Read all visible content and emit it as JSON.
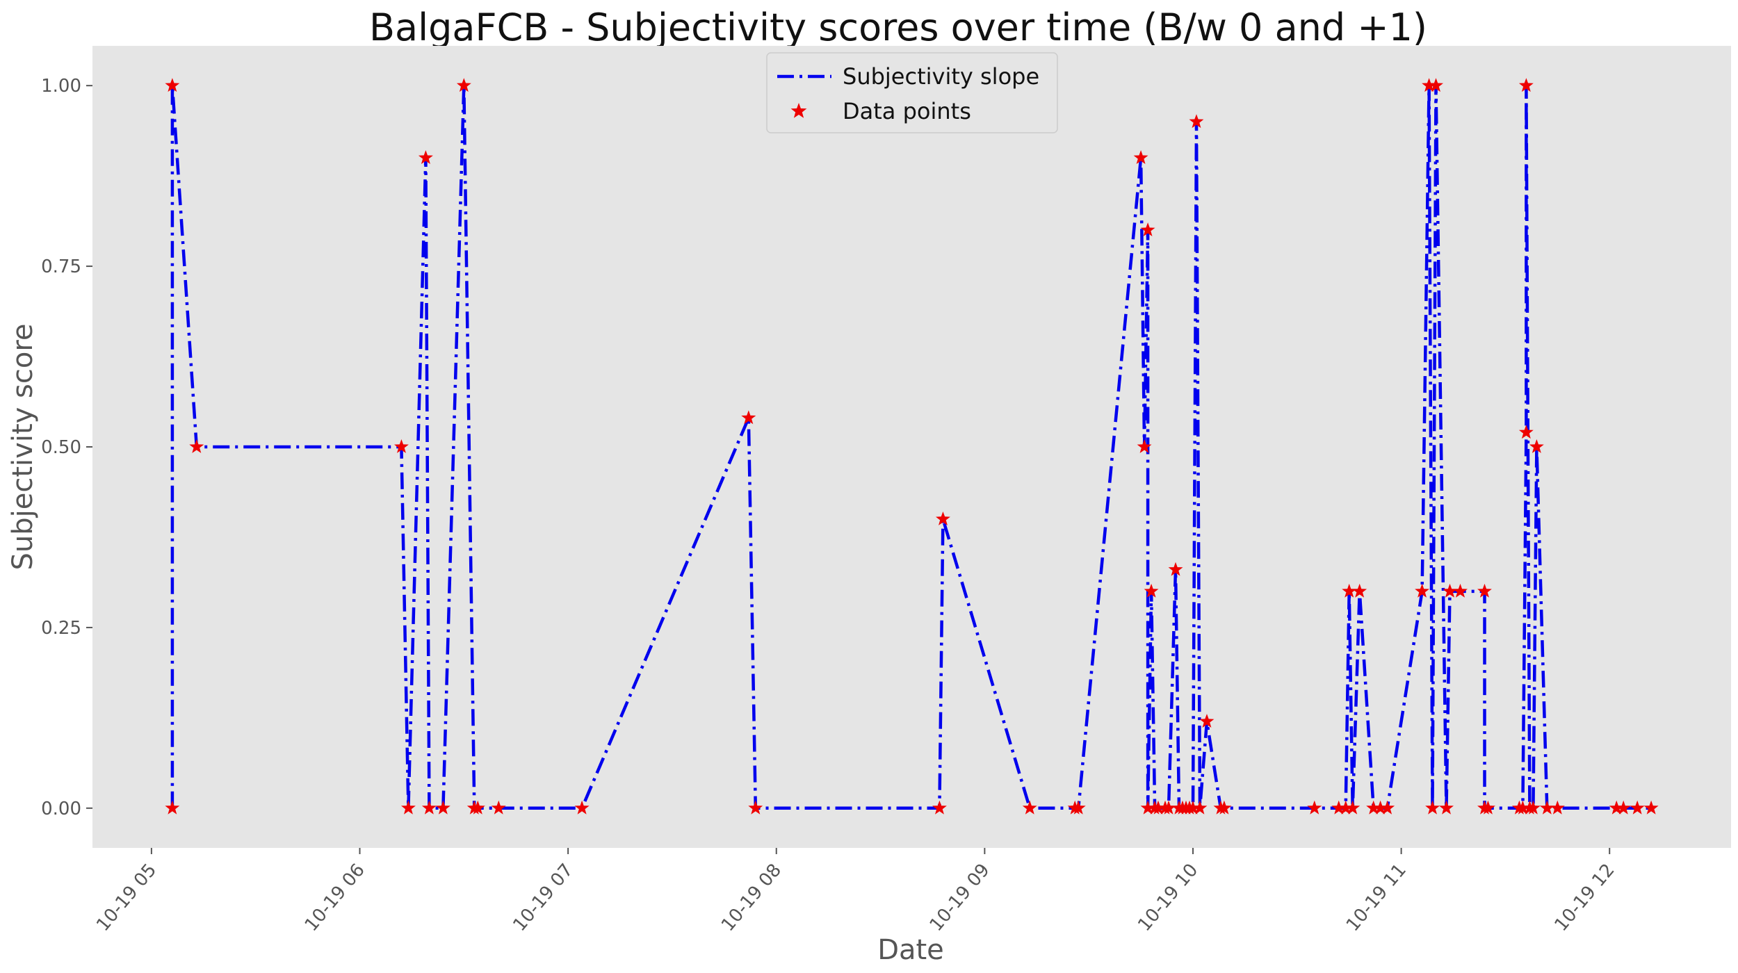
{
  "chart_data": {
    "type": "line",
    "title": "BalgaFCB - Subjectivity scores over time (B/w 0 and +1)",
    "xlabel": "Date",
    "ylabel": "Subjectivity score",
    "ylim": [
      -0.055,
      1.055
    ],
    "xlim": [
      "10-19 04:43",
      "10-19 12:35"
    ],
    "yticks": [
      0.0,
      0.25,
      0.5,
      0.75,
      1.0
    ],
    "ytick_labels": [
      "0.00",
      "0.25",
      "0.50",
      "0.75",
      "1.00"
    ],
    "xticks": [
      "10-19 05:00",
      "10-19 06:00",
      "10-19 07:00",
      "10-19 08:00",
      "10-19 09:00",
      "10-19 10:00",
      "10-19 11:00",
      "10-19 12:00"
    ],
    "xtick_labels": [
      "10-19 05",
      "10-19 06",
      "10-19 07",
      "10-19 08",
      "10-19 09",
      "10-19 10",
      "10-19 11",
      "10-19 12"
    ],
    "grid": false,
    "legend": "upper-center",
    "colors": {
      "line": "#0000ee",
      "points": "#ee0000",
      "plot_bg": "#e5e5e5"
    },
    "series": [
      {
        "name": "Subjectivity slope",
        "style": "dashdot-line"
      },
      {
        "name": "Data points",
        "style": "star-markers"
      }
    ],
    "points": [
      [
        "10-19 05:06",
        0.0
      ],
      [
        "10-19 05:06",
        1.0
      ],
      [
        "10-19 05:13",
        0.5
      ],
      [
        "10-19 06:12",
        0.5
      ],
      [
        "10-19 06:14",
        0.0
      ],
      [
        "10-19 06:19",
        0.9
      ],
      [
        "10-19 06:20",
        0.0
      ],
      [
        "10-19 06:24",
        0.0
      ],
      [
        "10-19 06:30",
        1.0
      ],
      [
        "10-19 06:33",
        0.0
      ],
      [
        "10-19 06:34",
        0.0
      ],
      [
        "10-19 06:40",
        0.0
      ],
      [
        "10-19 07:04",
        0.0
      ],
      [
        "10-19 07:52",
        0.54
      ],
      [
        "10-19 07:54",
        0.0
      ],
      [
        "10-19 08:47",
        0.0
      ],
      [
        "10-19 08:48",
        0.4
      ],
      [
        "10-19 09:13",
        0.0
      ],
      [
        "10-19 09:26",
        0.0
      ],
      [
        "10-19 09:27",
        0.0
      ],
      [
        "10-19 09:45",
        0.9
      ],
      [
        "10-19 09:46",
        0.5
      ],
      [
        "10-19 09:47",
        0.8
      ],
      [
        "10-19 09:47",
        0.0
      ],
      [
        "10-19 09:48",
        0.3
      ],
      [
        "10-19 09:49",
        0.0
      ],
      [
        "10-19 09:50",
        0.0
      ],
      [
        "10-19 09:52",
        0.0
      ],
      [
        "10-19 09:53",
        0.0
      ],
      [
        "10-19 09:55",
        0.33
      ],
      [
        "10-19 09:56",
        0.0
      ],
      [
        "10-19 09:57",
        0.0
      ],
      [
        "10-19 09:58",
        0.0
      ],
      [
        "10-19 09:59",
        0.0
      ],
      [
        "10-19 10:00",
        0.0
      ],
      [
        "10-19 10:01",
        0.95
      ],
      [
        "10-19 10:02",
        0.0
      ],
      [
        "10-19 10:04",
        0.12
      ],
      [
        "10-19 10:08",
        0.0
      ],
      [
        "10-19 10:09",
        0.0
      ],
      [
        "10-19 10:35",
        0.0
      ],
      [
        "10-19 10:42",
        0.0
      ],
      [
        "10-19 10:44",
        0.0
      ],
      [
        "10-19 10:45",
        0.3
      ],
      [
        "10-19 10:46",
        0.0
      ],
      [
        "10-19 10:48",
        0.3
      ],
      [
        "10-19 10:52",
        0.0
      ],
      [
        "10-19 10:54",
        0.0
      ],
      [
        "10-19 10:56",
        0.0
      ],
      [
        "10-19 11:06",
        0.3
      ],
      [
        "10-19 11:08",
        1.0
      ],
      [
        "10-19 11:09",
        0.0
      ],
      [
        "10-19 11:10",
        1.0
      ],
      [
        "10-19 11:13",
        0.0
      ],
      [
        "10-19 11:14",
        0.3
      ],
      [
        "10-19 11:17",
        0.3
      ],
      [
        "10-19 11:24",
        0.3
      ],
      [
        "10-19 11:24",
        0.0
      ],
      [
        "10-19 11:25",
        0.0
      ],
      [
        "10-19 11:34",
        0.0
      ],
      [
        "10-19 11:35",
        0.0
      ],
      [
        "10-19 11:36",
        0.52
      ],
      [
        "10-19 11:36",
        1.0
      ],
      [
        "10-19 11:37",
        0.0
      ],
      [
        "10-19 11:38",
        0.0
      ],
      [
        "10-19 11:39",
        0.5
      ],
      [
        "10-19 11:42",
        0.0
      ],
      [
        "10-19 11:45",
        0.0
      ],
      [
        "10-19 12:02",
        0.0
      ],
      [
        "10-19 12:04",
        0.0
      ],
      [
        "10-19 12:08",
        0.0
      ],
      [
        "10-19 12:12",
        0.0
      ]
    ]
  }
}
